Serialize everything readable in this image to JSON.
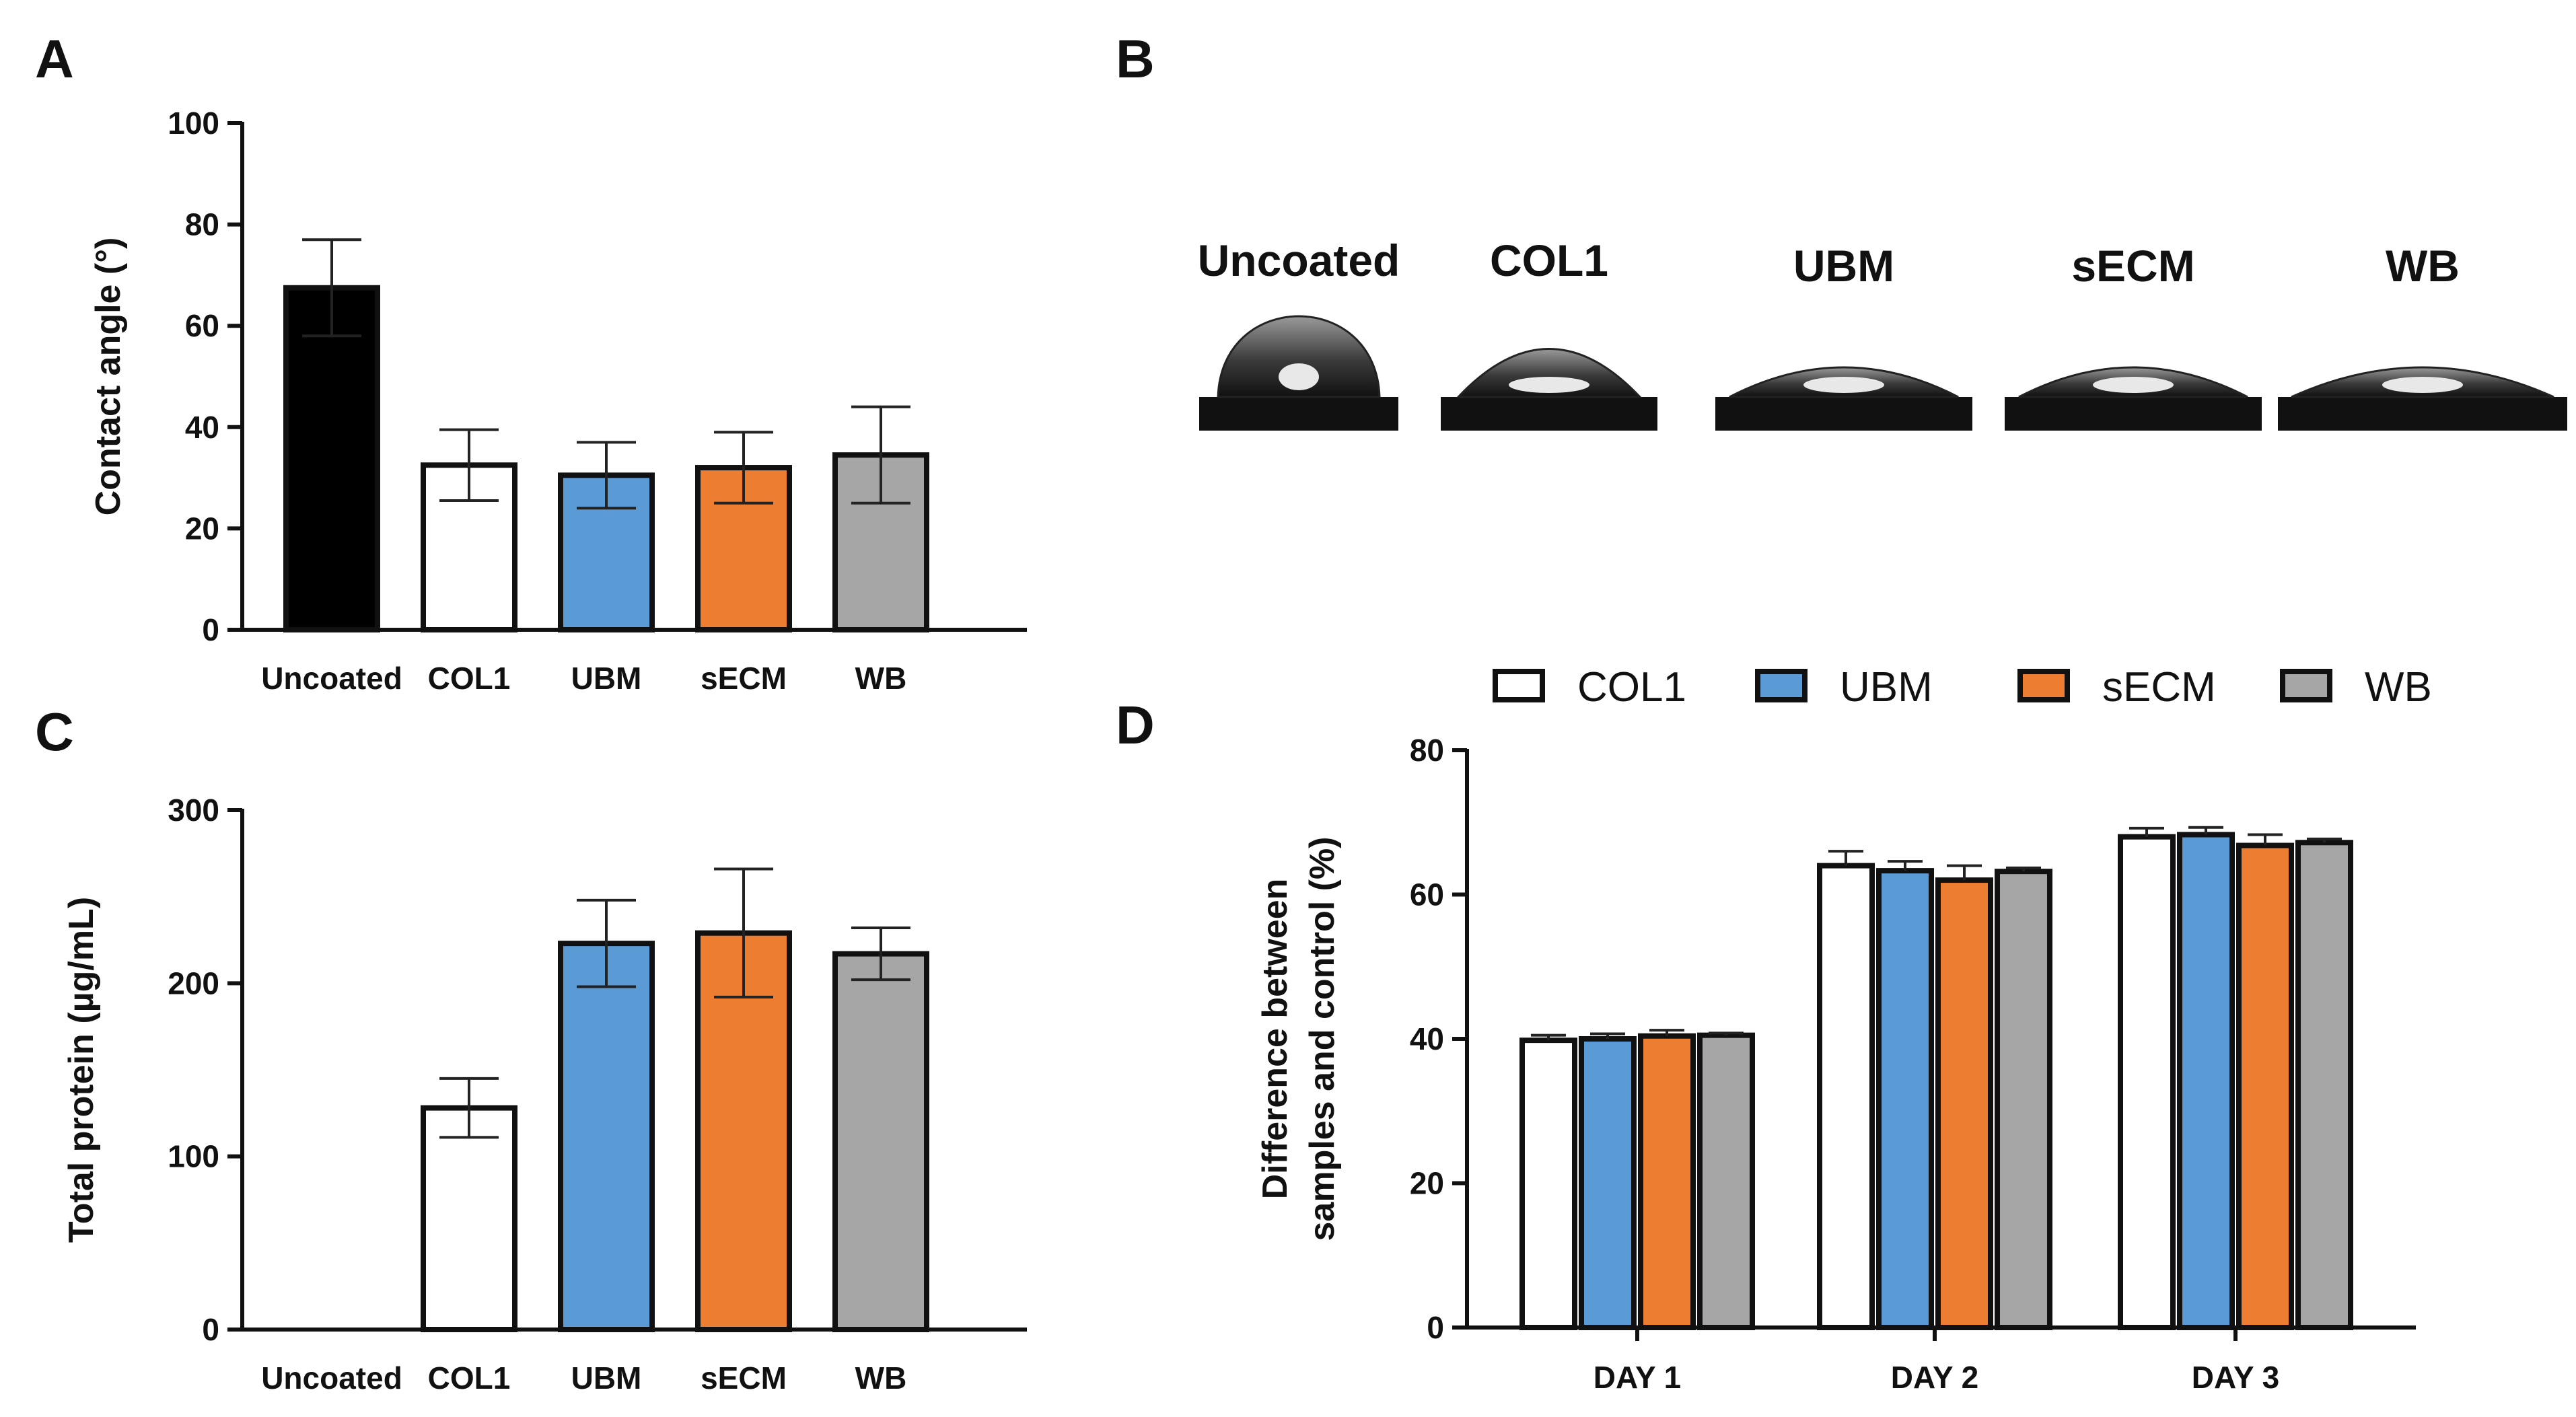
{
  "panel_letters": {
    "a": "A",
    "b": "B",
    "c": "C",
    "d": "D"
  },
  "chart_data": [
    {
      "id": "A",
      "type": "bar",
      "title": "",
      "xlabel": "",
      "ylabel": "Contact angle (°)",
      "ylim": [
        0,
        100
      ],
      "yticks": [
        0,
        20,
        40,
        60,
        80,
        100
      ],
      "categories": [
        "Uncoated",
        "COL1",
        "UBM",
        "sECM",
        "WB"
      ],
      "values": [
        67.5,
        32.5,
        30.5,
        32,
        34.5
      ],
      "errors": [
        9.5,
        7,
        6.5,
        7,
        9.5
      ],
      "colors": [
        "#000000",
        "#ffffff",
        "#5b9bd5",
        "#ed7d31",
        "#a6a6a6"
      ]
    },
    {
      "id": "C",
      "type": "bar",
      "title": "",
      "xlabel": "",
      "ylabel": "Total protein (µg/mL)",
      "ylim": [
        0,
        300
      ],
      "yticks": [
        0,
        100,
        200,
        300
      ],
      "categories": [
        "Uncoated",
        "COL1",
        "UBM",
        "sECM",
        "WB"
      ],
      "values": [
        0,
        128,
        223,
        229,
        217
      ],
      "errors": [
        0,
        17,
        25,
        37,
        15
      ],
      "colors": [
        "#000000",
        "#ffffff",
        "#5b9bd5",
        "#ed7d31",
        "#a6a6a6"
      ]
    },
    {
      "id": "D",
      "type": "bar",
      "title": "",
      "xlabel": "",
      "ylabel_line1": "Difference between",
      "ylabel_line2": "samples and control (%)",
      "ylim": [
        0,
        80
      ],
      "yticks": [
        0,
        20,
        40,
        60,
        80
      ],
      "categories": [
        "DAY 1",
        "DAY 2",
        "DAY 3"
      ],
      "legend_position": "top",
      "series": [
        {
          "name": "COL1",
          "color": "#ffffff",
          "values": [
            39.8,
            64,
            68
          ],
          "errors": [
            0.7,
            2,
            1.2
          ]
        },
        {
          "name": "UBM",
          "color": "#5b9bd5",
          "values": [
            40,
            63.3,
            68.3
          ],
          "errors": [
            0.7,
            1.3,
            1
          ]
        },
        {
          "name": "sECM",
          "color": "#ed7d31",
          "values": [
            40.4,
            62,
            66.8
          ],
          "errors": [
            0.8,
            2,
            1.5
          ]
        },
        {
          "name": "WB",
          "color": "#a6a6a6",
          "values": [
            40.5,
            63.2,
            67.2
          ],
          "errors": [
            0.3,
            0.5,
            0.5
          ]
        }
      ]
    }
  ],
  "droplets": {
    "labels": [
      "Uncoated",
      "COL1",
      "UBM",
      "sECM",
      "WB"
    ]
  }
}
